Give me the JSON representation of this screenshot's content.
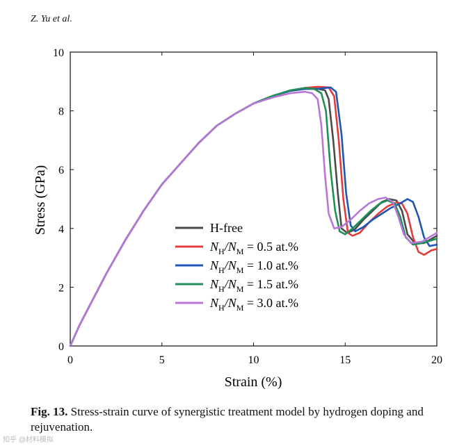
{
  "header": "Z. Yu et al.",
  "caption": {
    "label": "Fig. 13.",
    "text": "Stress-strain curve of synergistic treatment model by hydrogen doping and rejuvenation."
  },
  "watermark": "知乎 @材料模拟",
  "chart_data": {
    "type": "line",
    "xlabel": "Strain (%)",
    "ylabel": "Stress (GPa)",
    "xlim": [
      0,
      20
    ],
    "ylim": [
      0,
      10
    ],
    "xticks": [
      0,
      5,
      10,
      15,
      20
    ],
    "yticks": [
      0,
      2,
      4,
      6,
      8,
      10
    ],
    "legend_position": "lower-left",
    "series": [
      {
        "name": "H-free",
        "label_main": "H-free",
        "color": "#4a4a4a",
        "x": [
          0,
          0.5,
          1,
          2,
          3,
          4,
          5,
          6,
          7,
          8,
          9,
          10,
          11,
          12,
          12.8,
          13.5,
          13.9,
          14.1,
          14.35,
          14.6,
          14.8,
          15.1,
          15.5,
          16,
          16.5,
          17,
          17.4,
          17.8,
          18.1,
          18.4,
          18.8,
          19.3,
          20
        ],
        "y": [
          0,
          0.7,
          1.3,
          2.5,
          3.6,
          4.6,
          5.5,
          6.2,
          6.9,
          7.5,
          7.9,
          8.25,
          8.5,
          8.68,
          8.75,
          8.75,
          8.7,
          8.4,
          7.0,
          5.2,
          4.0,
          3.85,
          3.95,
          4.3,
          4.6,
          4.9,
          5.0,
          4.95,
          4.6,
          3.8,
          3.5,
          3.5,
          3.75
        ]
      },
      {
        "name": "NH/NM = 0.5 at.%",
        "label_main": "N",
        "label_sub1": "H",
        "label_mid": "/N",
        "label_sub2": "M",
        "label_tail": " = 0.5 at.%",
        "color": "#e03c3c",
        "x": [
          0,
          0.5,
          1,
          2,
          3,
          4,
          5,
          6,
          7,
          8,
          9,
          10,
          11,
          12,
          12.8,
          13.5,
          14.1,
          14.4,
          14.65,
          14.9,
          15.15,
          15.4,
          15.8,
          16.3,
          16.8,
          17.3,
          17.8,
          18.1,
          18.4,
          18.7,
          19.0,
          19.3,
          19.7,
          20
        ],
        "y": [
          0,
          0.7,
          1.3,
          2.5,
          3.6,
          4.6,
          5.5,
          6.2,
          6.9,
          7.5,
          7.9,
          8.25,
          8.5,
          8.68,
          8.78,
          8.82,
          8.8,
          8.5,
          7.0,
          5.0,
          3.85,
          3.75,
          3.85,
          4.2,
          4.5,
          4.75,
          4.88,
          4.85,
          4.5,
          3.7,
          3.2,
          3.1,
          3.25,
          3.3
        ]
      },
      {
        "name": "NH/NM = 1.0 at.%",
        "label_main": "N",
        "label_sub1": "H",
        "label_mid": "/N",
        "label_sub2": "M",
        "label_tail": " = 1.0 at.%",
        "color": "#1f56b5",
        "x": [
          0,
          0.5,
          1,
          2,
          3,
          4,
          5,
          6,
          7,
          8,
          9,
          10,
          11,
          12,
          12.8,
          13.5,
          14.2,
          14.5,
          14.8,
          15.05,
          15.3,
          15.55,
          16,
          16.5,
          17,
          17.5,
          18,
          18.4,
          18.7,
          19.0,
          19.3,
          19.6,
          20
        ],
        "y": [
          0,
          0.7,
          1.3,
          2.5,
          3.6,
          4.6,
          5.5,
          6.2,
          6.9,
          7.5,
          7.9,
          8.25,
          8.5,
          8.68,
          8.75,
          8.75,
          8.8,
          8.65,
          7.2,
          5.2,
          4.1,
          3.9,
          4.05,
          4.3,
          4.5,
          4.7,
          4.85,
          5.0,
          4.9,
          4.4,
          3.7,
          3.4,
          3.45
        ]
      },
      {
        "name": "NH/NM = 1.5 at.%",
        "label_main": "N",
        "label_sub1": "H",
        "label_mid": "/N",
        "label_sub2": "M",
        "label_tail": " = 1.5 at.%",
        "color": "#1f8f55",
        "x": [
          0,
          0.5,
          1,
          2,
          3,
          4,
          5,
          6,
          7,
          8,
          9,
          10,
          11,
          12,
          12.8,
          13.3,
          13.7,
          13.95,
          14.2,
          14.45,
          14.7,
          15.0,
          15.4,
          15.9,
          16.4,
          16.9,
          17.3,
          17.7,
          18.0,
          18.3,
          18.7,
          19.2,
          20
        ],
        "y": [
          0,
          0.7,
          1.3,
          2.5,
          3.6,
          4.6,
          5.5,
          6.2,
          6.9,
          7.5,
          7.9,
          8.25,
          8.5,
          8.7,
          8.78,
          8.75,
          8.6,
          8.0,
          6.0,
          4.6,
          3.9,
          3.8,
          4.0,
          4.3,
          4.6,
          4.85,
          4.95,
          4.85,
          4.4,
          3.7,
          3.45,
          3.5,
          3.65
        ]
      },
      {
        "name": "NH/NM = 3.0 at.%",
        "label_main": "N",
        "label_sub1": "H",
        "label_mid": "/N",
        "label_sub2": "M",
        "label_tail": " = 3.0 at.%",
        "color": "#b777d8",
        "x": [
          0,
          0.5,
          1,
          2,
          3,
          4,
          5,
          6,
          7,
          8,
          9,
          10,
          11,
          12,
          12.8,
          13.2,
          13.5,
          13.7,
          13.9,
          14.1,
          14.4,
          14.8,
          15.3,
          15.8,
          16.3,
          16.8,
          17.2,
          17.6,
          17.9,
          18.2,
          18.6,
          19.2,
          20
        ],
        "y": [
          0,
          0.7,
          1.3,
          2.5,
          3.6,
          4.6,
          5.5,
          6.2,
          6.9,
          7.5,
          7.9,
          8.25,
          8.45,
          8.6,
          8.65,
          8.6,
          8.4,
          7.5,
          5.8,
          4.5,
          4.0,
          4.05,
          4.3,
          4.6,
          4.85,
          5.0,
          5.05,
          4.9,
          4.4,
          3.8,
          3.5,
          3.55,
          3.85
        ]
      }
    ]
  }
}
